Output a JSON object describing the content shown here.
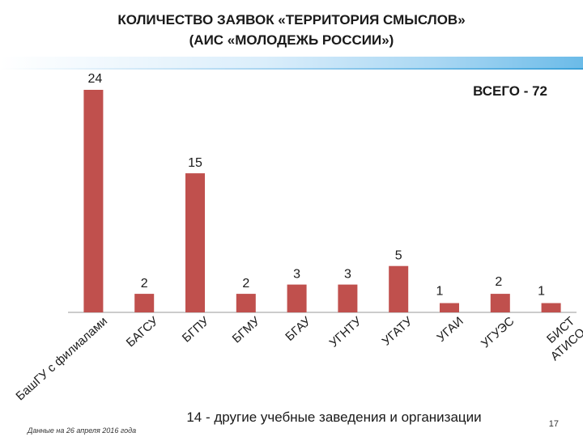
{
  "title": {
    "line1": "КОЛИЧЕСТВО ЗАЯВОК «ТЕРРИТОРИЯ СМЫСЛОВ»",
    "line2": "(АИС «МОЛОДЕЖЬ РОССИИ»)"
  },
  "total_label": "ВСЕГО - 72",
  "footer": "14 - другие учебные заведения и организации",
  "note": "Данные на 26 апреля 2016 года",
  "page_number": "17",
  "colors": {
    "bar": "#c0504d",
    "axis": "#9a9a9a",
    "band": "#6bbbe8"
  },
  "chart_data": {
    "type": "bar",
    "categories": [
      "БашГУ с филиалами",
      "БАГСУ",
      "БГПУ",
      "БГМУ",
      "БГАУ",
      "УГНТУ",
      "УГАТУ",
      "УГАИ",
      "УГУЭС",
      "БИСТ АТИСО"
    ],
    "values": [
      24,
      2,
      15,
      2,
      3,
      3,
      5,
      1,
      2,
      1
    ],
    "ylim": [
      0,
      24
    ],
    "grid": false,
    "legend": "none"
  }
}
